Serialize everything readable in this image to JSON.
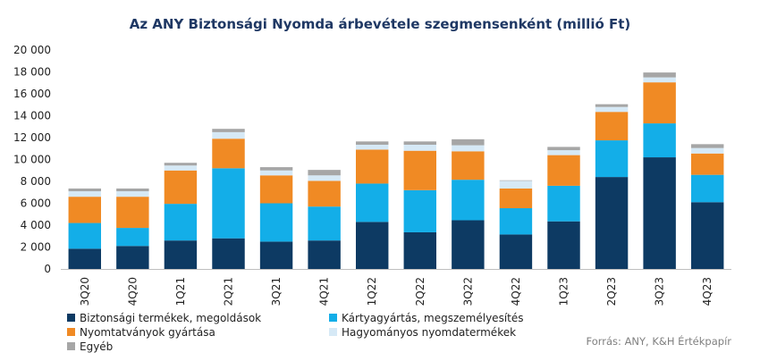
{
  "chart_data": {
    "type": "bar",
    "stacked": true,
    "title": "Az ANY Biztonsági Nyomda árbevétele szegmensenként (millió Ft)",
    "categories": [
      "3Q20",
      "4Q20",
      "1Q21",
      "2Q21",
      "3Q21",
      "4Q21",
      "1Q22",
      "2Q22",
      "3Q22",
      "4Q22",
      "1Q23",
      "2Q23",
      "3Q23",
      "4Q23"
    ],
    "series": [
      {
        "name": "Biztonsági termékek, megoldások",
        "color": "#0d3a63",
        "values": [
          1850,
          2100,
          2600,
          2800,
          2500,
          2600,
          4300,
          3350,
          4450,
          3150,
          4350,
          8400,
          10200,
          6100
        ]
      },
      {
        "name": "Kártyagyártás, megszemélyesítés",
        "color": "#13aee8",
        "values": [
          2350,
          1650,
          3350,
          6400,
          3500,
          3100,
          3500,
          3850,
          3700,
          2400,
          3250,
          3350,
          3100,
          2500
        ]
      },
      {
        "name": "Nyomtatványok gyártása",
        "color": "#f08a24",
        "values": [
          2400,
          2850,
          3050,
          2700,
          2550,
          2350,
          3100,
          3600,
          2600,
          1800,
          2800,
          2600,
          3750,
          1950
        ]
      },
      {
        "name": "Hagyományos nyomdatermékek",
        "color": "#d6e9f6",
        "values": [
          500,
          500,
          450,
          600,
          450,
          500,
          450,
          550,
          550,
          700,
          450,
          450,
          450,
          500
        ]
      },
      {
        "name": "Egyéb",
        "color": "#a6a6a6",
        "values": [
          250,
          250,
          250,
          300,
          300,
          500,
          300,
          300,
          550,
          50,
          300,
          250,
          450,
          350
        ]
      }
    ],
    "yticks": [
      "0",
      "2 000",
      "4 000",
      "6 000",
      "8 000",
      "10 000",
      "12 000",
      "14 000",
      "16 000",
      "18 000",
      "20 000"
    ],
    "ylim": [
      0,
      20000
    ],
    "legend_position": "bottom",
    "grid": false
  },
  "source": "Forrás: ANY, K&H Értékpapír"
}
